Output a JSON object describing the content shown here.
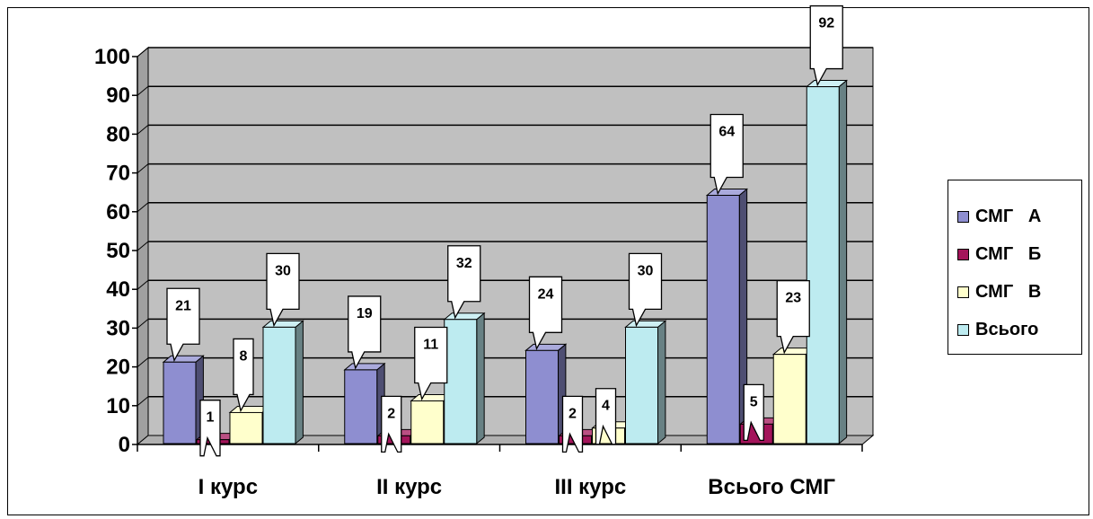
{
  "chart_data": {
    "type": "bar",
    "categories": [
      "I курс",
      "II курс",
      "III курс",
      "Всього СМГ"
    ],
    "series": [
      {
        "name": "СМГ   А",
        "values": [
          21,
          19,
          24,
          64
        ],
        "color": "#8E8ED0"
      },
      {
        "name": "СМГ   Б",
        "values": [
          1,
          2,
          2,
          5
        ],
        "color": "#A3145A"
      },
      {
        "name": "СМГ   В",
        "values": [
          8,
          11,
          4,
          23
        ],
        "color": "#FFFFCC"
      },
      {
        "name": "Всього",
        "values": [
          30,
          32,
          30,
          92
        ],
        "color": "#BDEBF0"
      }
    ],
    "data_labels": [
      [
        "21",
        "19",
        "24",
        "64"
      ],
      [
        "1",
        "2",
        "2",
        "5"
      ],
      [
        "8",
        "11",
        "4",
        "23"
      ],
      [
        "30",
        "32",
        "30",
        "92"
      ]
    ],
    "y_ticks": [
      "0",
      "10",
      "20",
      "30",
      "40",
      "50",
      "60",
      "70",
      "80",
      "90",
      "100"
    ],
    "ylim": [
      0,
      100
    ],
    "grid": true,
    "legend_position": "right",
    "wall_color": "#C0C0C0"
  }
}
